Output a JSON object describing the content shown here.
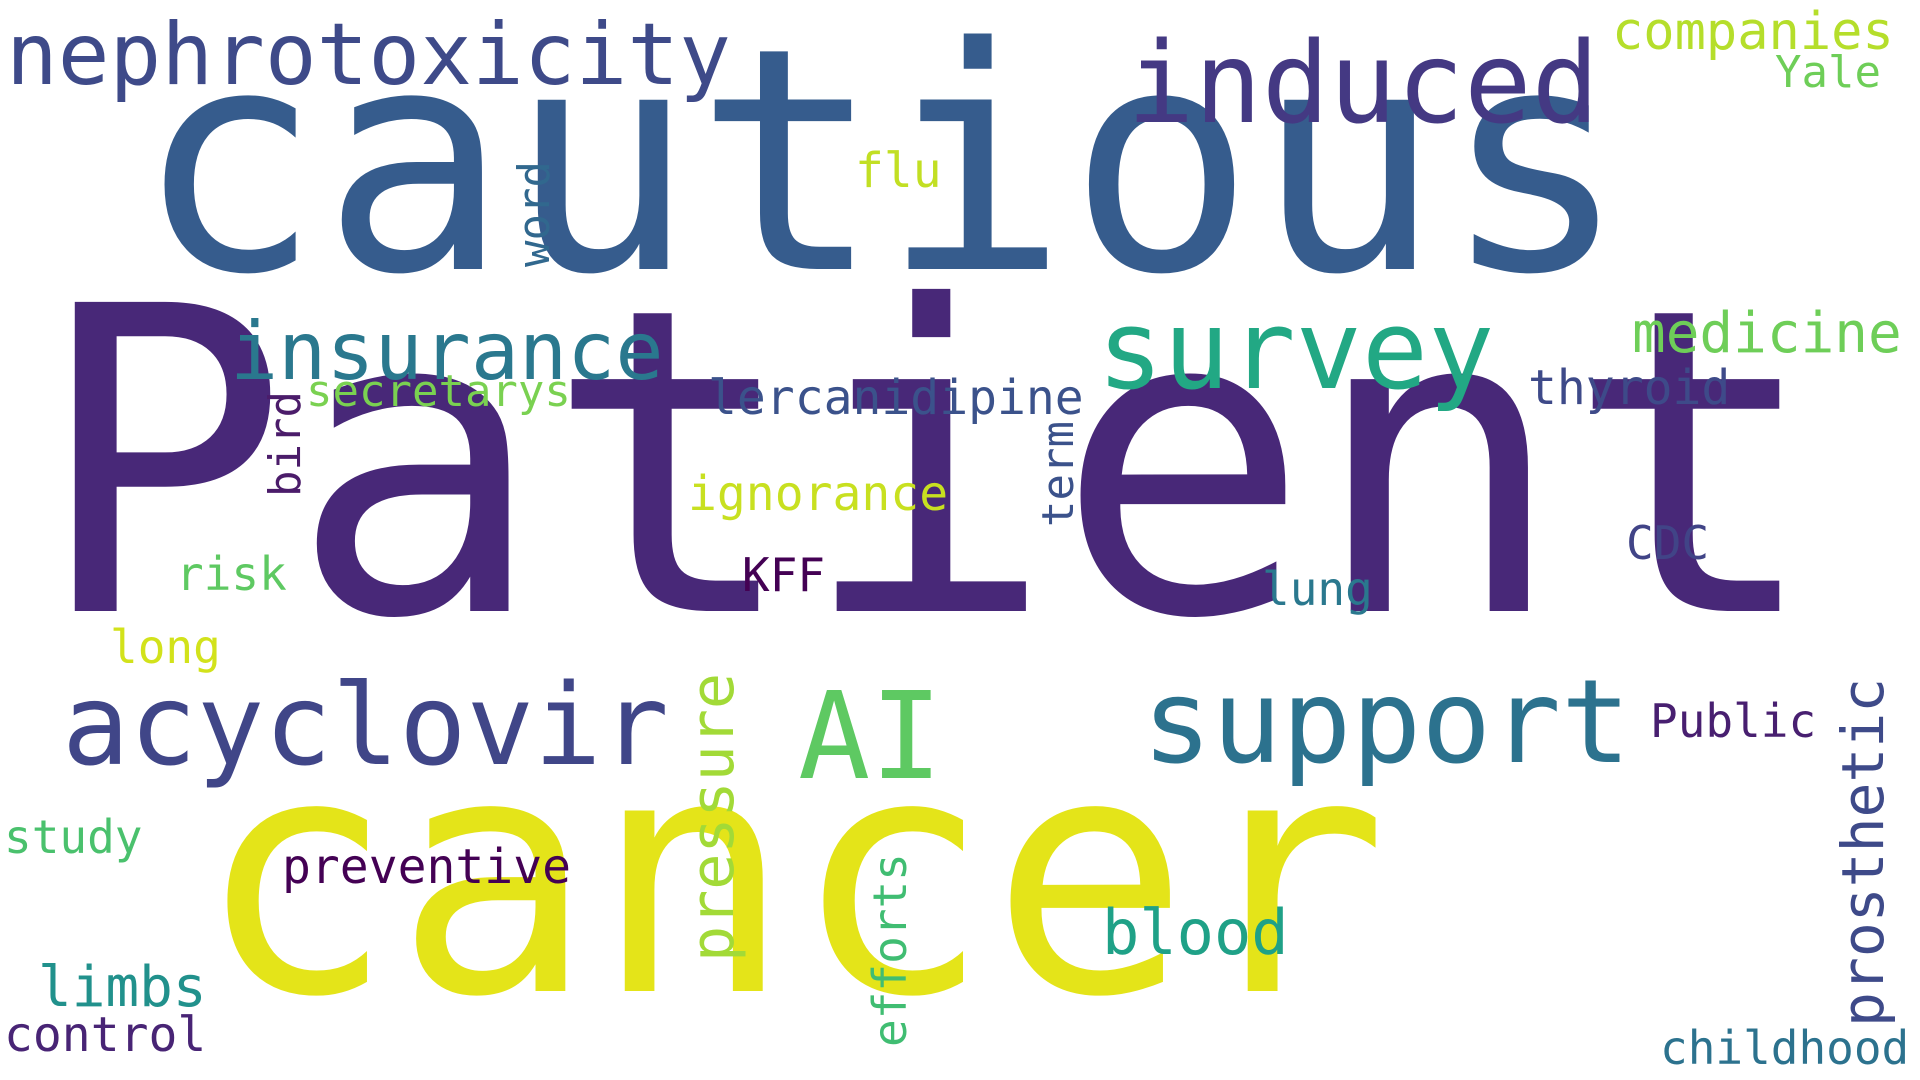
{
  "words": [
    {
      "text": "Patient",
      "color": "#482878",
      "orientation": "horizontal"
    },
    {
      "text": "cautious",
      "color": "#365c8d",
      "orientation": "horizontal"
    },
    {
      "text": "cancer",
      "color": "#e4e419",
      "orientation": "horizontal"
    },
    {
      "text": "nephrotoxicity",
      "color": "#3e4a89",
      "orientation": "horizontal"
    },
    {
      "text": "induced",
      "color": "#443983",
      "orientation": "horizontal"
    },
    {
      "text": "companies",
      "color": "#b5de2b",
      "orientation": "horizontal"
    },
    {
      "text": "Yale",
      "color": "#6ece58",
      "orientation": "horizontal"
    },
    {
      "text": "word",
      "color": "#31688e",
      "orientation": "vertical"
    },
    {
      "text": "flu",
      "color": "#c2df23",
      "orientation": "horizontal"
    },
    {
      "text": "insurance",
      "color": "#2a788e",
      "orientation": "horizontal"
    },
    {
      "text": "survey",
      "color": "#22a884",
      "orientation": "horizontal"
    },
    {
      "text": "medicine",
      "color": "#6ece58",
      "orientation": "horizontal"
    },
    {
      "text": "secretarys",
      "color": "#7ad151",
      "orientation": "horizontal"
    },
    {
      "text": "lercanidipine",
      "color": "#3b528b",
      "orientation": "horizontal"
    },
    {
      "text": "thyroid",
      "color": "#3e4a89",
      "orientation": "horizontal"
    },
    {
      "text": "bird",
      "color": "#4b1c6a",
      "orientation": "vertical"
    },
    {
      "text": "term",
      "color": "#3b528b",
      "orientation": "vertical"
    },
    {
      "text": "ignorance",
      "color": "#c8e020",
      "orientation": "horizontal"
    },
    {
      "text": "CDC",
      "color": "#414487",
      "orientation": "horizontal"
    },
    {
      "text": "risk",
      "color": "#5ec962",
      "orientation": "horizontal"
    },
    {
      "text": "KFF",
      "color": "#440154",
      "orientation": "horizontal"
    },
    {
      "text": "lung",
      "color": "#2a788e",
      "orientation": "horizontal"
    },
    {
      "text": "long",
      "color": "#d2e21b",
      "orientation": "horizontal"
    },
    {
      "text": "acyclovir",
      "color": "#404688",
      "orientation": "horizontal"
    },
    {
      "text": "AI",
      "color": "#5ec962",
      "orientation": "horizontal"
    },
    {
      "text": "support",
      "color": "#2c728e",
      "orientation": "horizontal"
    },
    {
      "text": "pressure",
      "color": "#a2da37",
      "orientation": "vertical"
    },
    {
      "text": "Public",
      "color": "#481f70",
      "orientation": "horizontal"
    },
    {
      "text": "prosthetic",
      "color": "#3e4a89",
      "orientation": "vertical"
    },
    {
      "text": "study",
      "color": "#4ac16d",
      "orientation": "horizontal"
    },
    {
      "text": "preventive",
      "color": "#440154",
      "orientation": "horizontal"
    },
    {
      "text": "blood",
      "color": "#1fa187",
      "orientation": "horizontal"
    },
    {
      "text": "efforts",
      "color": "#40bd72",
      "orientation": "vertical"
    },
    {
      "text": "limbs",
      "color": "#21918c",
      "orientation": "horizontal"
    },
    {
      "text": "control",
      "color": "#482475",
      "orientation": "horizontal"
    },
    {
      "text": "childhood",
      "color": "#2c728e",
      "orientation": "horizontal"
    }
  ]
}
